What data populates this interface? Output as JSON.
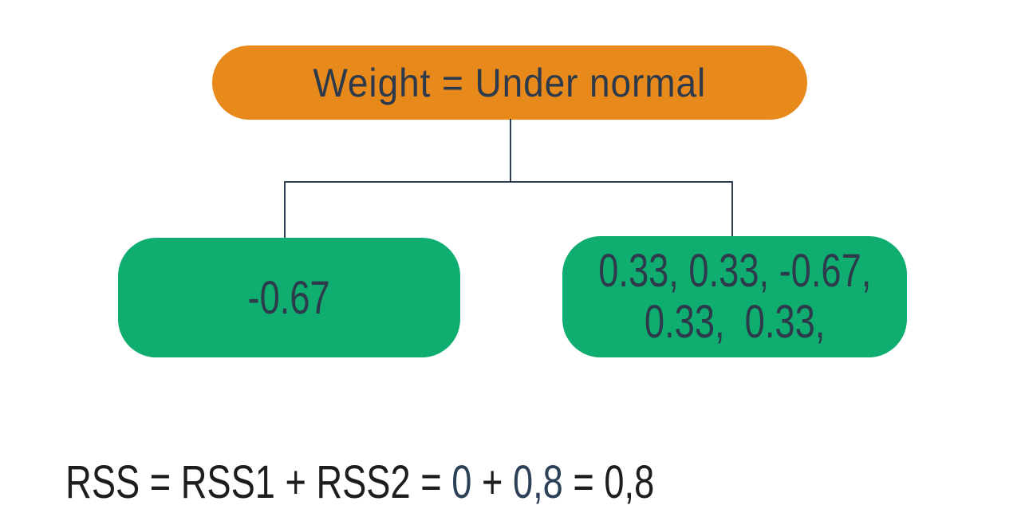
{
  "diagram": {
    "root": {
      "label": "Weight = Under normal"
    },
    "left_leaf": {
      "label": "-0.67"
    },
    "right_leaf": {
      "line1": "0.33, 0.33, -0.67,",
      "line2": "0.33,  0.33,"
    },
    "colors": {
      "root_fill": "#E8891B",
      "leaf_fill": "#10AD70",
      "node_text": "#2C3A4C",
      "line": "#2E3F51"
    }
  },
  "formula": {
    "segments": [
      {
        "text": "RSS = RSS1 + RSS2 = ",
        "color": "#1D1D1B"
      },
      {
        "text": "0",
        "color": "#2C4157"
      },
      {
        "text": " + ",
        "color": "#1D1D1B"
      },
      {
        "text": "0,8",
        "color": "#2C4157"
      },
      {
        "text": " = 0,8",
        "color": "#1D1D1B"
      }
    ]
  }
}
